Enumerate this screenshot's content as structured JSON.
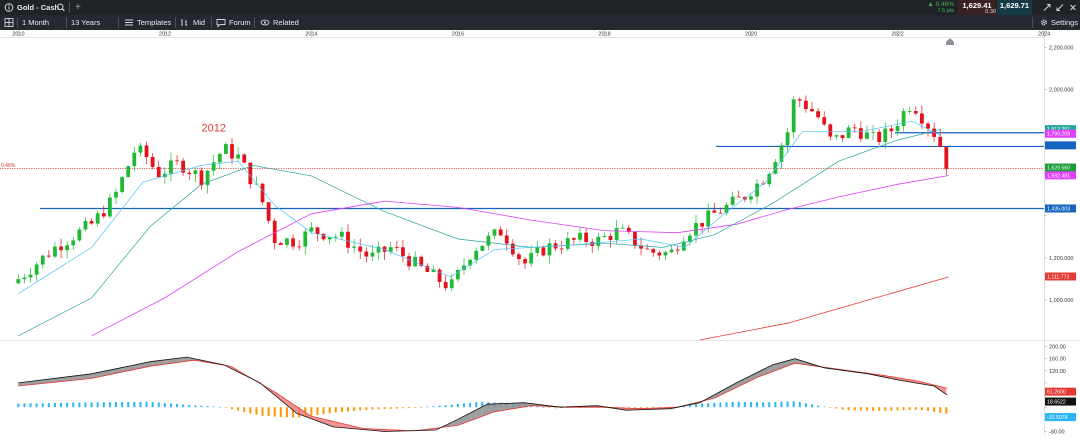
{
  "window": {
    "title": "Gold - Cash",
    "plus": "+"
  },
  "quote": {
    "change_pct": "▲ 0.46%",
    "change_pts": "7.5 pts",
    "bid": "1,629.41",
    "spread": "0.30",
    "ask": "1,629.71"
  },
  "toolbar": {
    "interval": "1 Month",
    "range": "13 Years",
    "templates": "Templates",
    "mid": "Mid",
    "forum": "Forum",
    "related": "Related",
    "settings": "Settings"
  },
  "icons": {
    "info": "info-icon",
    "search": "search-icon",
    "layout": "layout-icon",
    "templates": "templates-icon",
    "mid": "mid-icon",
    "forum": "forum-icon",
    "related": "eye-icon",
    "settings": "gear-icon",
    "expand": "expand-icon",
    "collapse": "collapse-icon",
    "close": "close-icon",
    "scroll": "scroll-up-icon"
  },
  "chart_data": {
    "type": "candlestick",
    "instrument": "Gold - Cash",
    "interval": "1 Month",
    "x_tick_labels": [
      "2010",
      "2012",
      "2014",
      "2016",
      "2018",
      "2020",
      "2022",
      "2024"
    ],
    "price_axis": {
      "ticks": [
        1000,
        1200,
        1400,
        1600,
        1800,
        2000,
        2200
      ],
      "tick_labels": [
        "1,000.000",
        "1,200.000",
        "",
        "1,600.000",
        "",
        "2,000.000",
        "2,200.000"
      ],
      "ylim": [
        810,
        2250
      ]
    },
    "annotation": "2012",
    "horizontal_lines": [
      {
        "price": 1795,
        "color": "#1565c0"
      },
      {
        "price": 1730,
        "color": "#1565c0"
      },
      {
        "price": 1625,
        "color": "#d32f2f",
        "style": "dotted",
        "label": "0.46%"
      },
      {
        "price": 1435,
        "color": "#1565c0"
      }
    ],
    "price_tags": [
      {
        "text": "1,812.251",
        "value": 1812.251,
        "bg": "#26a69a"
      },
      {
        "text": "1,790.208",
        "value": 1790.208,
        "bg": "#e040fb"
      },
      {
        "text": "",
        "value": 1735,
        "bg": "#1565c0"
      },
      {
        "text": "1,629.560",
        "value": 1629.56,
        "bg": "#1a9c3a"
      },
      {
        "text": "1,592.481",
        "value": 1592.481,
        "bg": "#e040fb"
      },
      {
        "text": "1,435.003",
        "value": 1435.003,
        "bg": "#1565c0"
      },
      {
        "text": "1,111.773",
        "value": 1111.773,
        "bg": "#e53935"
      }
    ],
    "waypoints": [
      [
        2010.0,
        1100
      ],
      [
        2010.5,
        1250
      ],
      [
        2011.0,
        1360
      ],
      [
        2011.3,
        1480
      ],
      [
        2011.6,
        1720
      ],
      [
        2011.75,
        1680
      ],
      [
        2011.9,
        1600
      ],
      [
        2012.2,
        1650
      ],
      [
        2012.5,
        1580
      ],
      [
        2012.8,
        1720
      ],
      [
        2013.0,
        1680
      ],
      [
        2013.3,
        1500
      ],
      [
        2013.5,
        1290
      ],
      [
        2013.8,
        1280
      ],
      [
        2014.0,
        1330
      ],
      [
        2014.4,
        1300
      ],
      [
        2014.8,
        1200
      ],
      [
        2015.1,
        1250
      ],
      [
        2015.5,
        1150
      ],
      [
        2015.9,
        1060
      ],
      [
        2016.2,
        1240
      ],
      [
        2016.6,
        1330
      ],
      [
        2016.9,
        1170
      ],
      [
        2017.2,
        1250
      ],
      [
        2017.7,
        1290
      ],
      [
        2017.9,
        1280
      ],
      [
        2018.2,
        1330
      ],
      [
        2018.6,
        1230
      ],
      [
        2018.9,
        1220
      ],
      [
        2019.1,
        1320
      ],
      [
        2019.5,
        1410
      ],
      [
        2019.9,
        1490
      ],
      [
        2020.2,
        1590
      ],
      [
        2020.5,
        1800
      ],
      [
        2020.6,
        1970
      ],
      [
        2020.9,
        1880
      ],
      [
        2021.1,
        1750
      ],
      [
        2021.4,
        1820
      ],
      [
        2021.7,
        1760
      ],
      [
        2021.9,
        1800
      ],
      [
        2022.1,
        1900
      ],
      [
        2022.2,
        1940
      ],
      [
        2022.4,
        1840
      ],
      [
        2022.55,
        1770
      ],
      [
        2022.68,
        1635
      ]
    ],
    "sma_fast_points": [
      [
        2010.0,
        1030
      ],
      [
        2011.0,
        1250
      ],
      [
        2011.7,
        1560
      ],
      [
        2012.5,
        1640
      ],
      [
        2013.0,
        1660
      ],
      [
        2013.5,
        1450
      ],
      [
        2014.0,
        1320
      ],
      [
        2015.0,
        1240
      ],
      [
        2015.9,
        1110
      ],
      [
        2016.5,
        1240
      ],
      [
        2017.5,
        1260
      ],
      [
        2018.5,
        1290
      ],
      [
        2019.1,
        1250
      ],
      [
        2019.6,
        1400
      ],
      [
        2020.2,
        1560
      ],
      [
        2020.7,
        1800
      ],
      [
        2021.5,
        1800
      ],
      [
        2022.2,
        1850
      ],
      [
        2022.6,
        1780
      ]
    ],
    "sma_slow_points": [
      [
        2010.0,
        830
      ],
      [
        2011.0,
        1010
      ],
      [
        2011.8,
        1350
      ],
      [
        2012.5,
        1550
      ],
      [
        2013.2,
        1640
      ],
      [
        2014.0,
        1590
      ],
      [
        2015.0,
        1420
      ],
      [
        2016.0,
        1290
      ],
      [
        2017.0,
        1250
      ],
      [
        2018.0,
        1270
      ],
      [
        2018.8,
        1250
      ],
      [
        2019.5,
        1310
      ],
      [
        2020.3,
        1460
      ],
      [
        2021.2,
        1660
      ],
      [
        2022.0,
        1760
      ],
      [
        2022.6,
        1812
      ]
    ],
    "ma_magenta_points": [
      [
        2011.0,
        830
      ],
      [
        2012.0,
        1010
      ],
      [
        2013.0,
        1230
      ],
      [
        2014.0,
        1410
      ],
      [
        2015.0,
        1470
      ],
      [
        2016.0,
        1440
      ],
      [
        2017.0,
        1380
      ],
      [
        2018.0,
        1330
      ],
      [
        2019.0,
        1320
      ],
      [
        2019.8,
        1360
      ],
      [
        2020.5,
        1430
      ],
      [
        2021.2,
        1490
      ],
      [
        2022.0,
        1550
      ],
      [
        2022.7,
        1592
      ]
    ],
    "ma_red_points": [
      [
        2019.3,
        810
      ],
      [
        2020.5,
        890
      ],
      [
        2021.5,
        990
      ],
      [
        2022.7,
        1110
      ]
    ],
    "oscillator": {
      "ticks": [
        -80,
        -40,
        0,
        40,
        80,
        120,
        160,
        200
      ],
      "tick_labels": [
        "-80.00",
        "",
        "",
        "",
        "",
        "120.00",
        "160.00",
        "200.00"
      ],
      "ylim": [
        -85,
        205
      ],
      "tags": [
        {
          "text": "51.2600",
          "value": 51.26,
          "bg": "#e53935"
        },
        {
          "text": "18.6522",
          "value": 18.6522,
          "bg": "#111111"
        },
        {
          "text": "-32.5078",
          "value": -32.5078,
          "bg": "#29b6f6"
        }
      ],
      "macd_points": [
        [
          2010.0,
          80
        ],
        [
          2011.0,
          110
        ],
        [
          2011.8,
          150
        ],
        [
          2012.3,
          165
        ],
        [
          2012.8,
          140
        ],
        [
          2013.3,
          80
        ],
        [
          2013.8,
          -20
        ],
        [
          2014.3,
          -65
        ],
        [
          2015.0,
          -80
        ],
        [
          2015.7,
          -75
        ],
        [
          2016.0,
          -40
        ],
        [
          2016.4,
          10
        ],
        [
          2016.9,
          15
        ],
        [
          2017.4,
          0
        ],
        [
          2017.9,
          5
        ],
        [
          2018.3,
          -10
        ],
        [
          2018.9,
          -5
        ],
        [
          2019.3,
          15
        ],
        [
          2019.8,
          80
        ],
        [
          2020.3,
          140
        ],
        [
          2020.6,
          160
        ],
        [
          2021.0,
          130
        ],
        [
          2021.6,
          110
        ],
        [
          2022.0,
          90
        ],
        [
          2022.5,
          70
        ],
        [
          2022.68,
          40
        ]
      ],
      "signal_points": [
        [
          2010.0,
          70
        ],
        [
          2011.0,
          95
        ],
        [
          2011.8,
          135
        ],
        [
          2012.4,
          155
        ],
        [
          2012.9,
          135
        ],
        [
          2013.5,
          50
        ],
        [
          2014.0,
          -30
        ],
        [
          2014.7,
          -70
        ],
        [
          2015.4,
          -78
        ],
        [
          2016.0,
          -60
        ],
        [
          2016.5,
          -15
        ],
        [
          2017.0,
          5
        ],
        [
          2017.5,
          0
        ],
        [
          2018.0,
          0
        ],
        [
          2018.5,
          -5
        ],
        [
          2019.0,
          0
        ],
        [
          2019.5,
          30
        ],
        [
          2020.1,
          100
        ],
        [
          2020.6,
          145
        ],
        [
          2021.2,
          125
        ],
        [
          2021.8,
          105
        ],
        [
          2022.3,
          85
        ],
        [
          2022.68,
          62
        ]
      ],
      "histogram_points": [
        [
          2010.0,
          12
        ],
        [
          2011.0,
          16
        ],
        [
          2011.8,
          18
        ],
        [
          2012.3,
          8
        ],
        [
          2012.8,
          0
        ],
        [
          2013.3,
          -28
        ],
        [
          2013.8,
          -35
        ],
        [
          2014.3,
          -18
        ],
        [
          2014.8,
          -8
        ],
        [
          2015.4,
          -2
        ],
        [
          2015.9,
          8
        ],
        [
          2016.3,
          18
        ],
        [
          2016.8,
          12
        ],
        [
          2017.3,
          -4
        ],
        [
          2017.8,
          0
        ],
        [
          2018.3,
          -6
        ],
        [
          2018.8,
          -4
        ],
        [
          2019.3,
          12
        ],
        [
          2019.8,
          18
        ],
        [
          2020.2,
          16
        ],
        [
          2020.6,
          20
        ],
        [
          2020.9,
          6
        ],
        [
          2021.3,
          -10
        ],
        [
          2021.8,
          -12
        ],
        [
          2022.3,
          -8
        ],
        [
          2022.68,
          -22
        ]
      ]
    }
  }
}
